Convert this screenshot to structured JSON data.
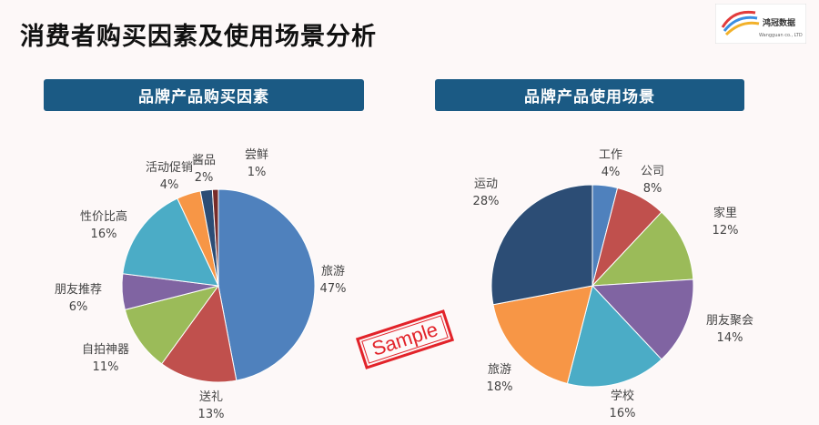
{
  "page": {
    "title": "消费者购买因素及使用场景分析",
    "stamp": "Sample",
    "logo_text": "鸿冠数据",
    "logo_subtext": "Wangguan co., LTD"
  },
  "chart_data": [
    {
      "type": "pie",
      "title": "品牌产品购买因素",
      "slices": [
        {
          "label": "旅游",
          "value": 47,
          "pct": "47%",
          "color": "#4f81bd"
        },
        {
          "label": "送礼",
          "value": 13,
          "pct": "13%",
          "color": "#c0504d"
        },
        {
          "label": "自拍神器",
          "value": 11,
          "pct": "11%",
          "color": "#9bbb59"
        },
        {
          "label": "朋友推荐",
          "value": 6,
          "pct": "6%",
          "color": "#8064a2"
        },
        {
          "label": "性价比高",
          "value": 16,
          "pct": "16%",
          "color": "#4bacc6"
        },
        {
          "label": "活动促销",
          "value": 4,
          "pct": "4%",
          "color": "#f79646"
        },
        {
          "label": "酱品",
          "value": 2,
          "pct": "2%",
          "color": "#2c4d75"
        },
        {
          "label": "尝鲜",
          "value": 1,
          "pct": "1%",
          "color": "#772c2a"
        }
      ]
    },
    {
      "type": "pie",
      "title": "品牌产品使用场景",
      "slices": [
        {
          "label": "工作",
          "value": 4,
          "pct": "4%",
          "color": "#4f81bd"
        },
        {
          "label": "公司",
          "value": 8,
          "pct": "8%",
          "color": "#c0504d"
        },
        {
          "label": "家里",
          "value": 12,
          "pct": "12%",
          "color": "#9bbb59"
        },
        {
          "label": "朋友聚会",
          "value": 14,
          "pct": "14%",
          "color": "#8064a2"
        },
        {
          "label": "学校",
          "value": 16,
          "pct": "16%",
          "color": "#4bacc6"
        },
        {
          "label": "旅游",
          "value": 18,
          "pct": "18%",
          "color": "#f79646"
        },
        {
          "label": "运动",
          "value": 28,
          "pct": "28%",
          "color": "#2c4d75"
        }
      ]
    }
  ]
}
